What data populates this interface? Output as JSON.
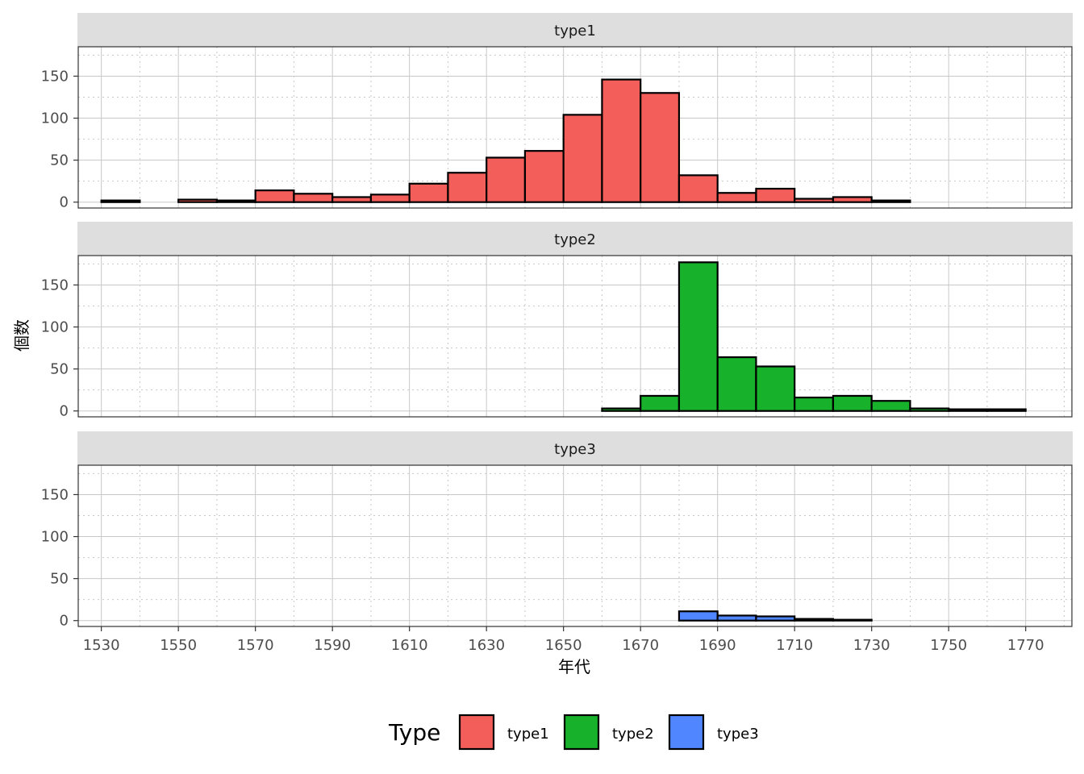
{
  "chart_data": {
    "type": "bar",
    "subtype": "faceted-histogram",
    "xlabel": "年代",
    "ylabel": "個数",
    "xlim": [
      1524,
      1782
    ],
    "ylim": [
      -7,
      185
    ],
    "x_ticks": [
      1530,
      1550,
      1570,
      1590,
      1610,
      1630,
      1650,
      1670,
      1690,
      1710,
      1730,
      1750,
      1770
    ],
    "y_ticks": [
      0,
      50,
      100,
      150
    ],
    "bin_width": 10,
    "bin_starts": [
      1530,
      1540,
      1550,
      1560,
      1570,
      1580,
      1590,
      1600,
      1610,
      1620,
      1630,
      1640,
      1650,
      1660,
      1670,
      1680,
      1690,
      1700,
      1710,
      1720,
      1730,
      1740,
      1750,
      1760
    ],
    "grid": true,
    "legend": {
      "title": "Type",
      "position": "bottom",
      "entries": [
        {
          "label": "type1",
          "color": "#F35E5A"
        },
        {
          "label": "type2",
          "color": "#17B12B"
        },
        {
          "label": "type3",
          "color": "#5086FF"
        }
      ]
    },
    "facets": [
      {
        "label": "type1",
        "color": "#F35E5A",
        "values": [
          2,
          0,
          3,
          2,
          14,
          10,
          6,
          9,
          22,
          35,
          53,
          61,
          104,
          146,
          130,
          32,
          11,
          16,
          4,
          6,
          2,
          0,
          0,
          0
        ]
      },
      {
        "label": "type2",
        "color": "#17B12B",
        "values": [
          0,
          0,
          0,
          0,
          0,
          0,
          0,
          0,
          0,
          0,
          0,
          0,
          0,
          3,
          18,
          177,
          64,
          53,
          16,
          18,
          12,
          3,
          2,
          2
        ]
      },
      {
        "label": "type3",
        "color": "#5086FF",
        "values": [
          0,
          0,
          0,
          0,
          0,
          0,
          0,
          0,
          0,
          0,
          0,
          0,
          0,
          0,
          0,
          11,
          6,
          5,
          2,
          1,
          0,
          0,
          0,
          0
        ]
      }
    ]
  }
}
